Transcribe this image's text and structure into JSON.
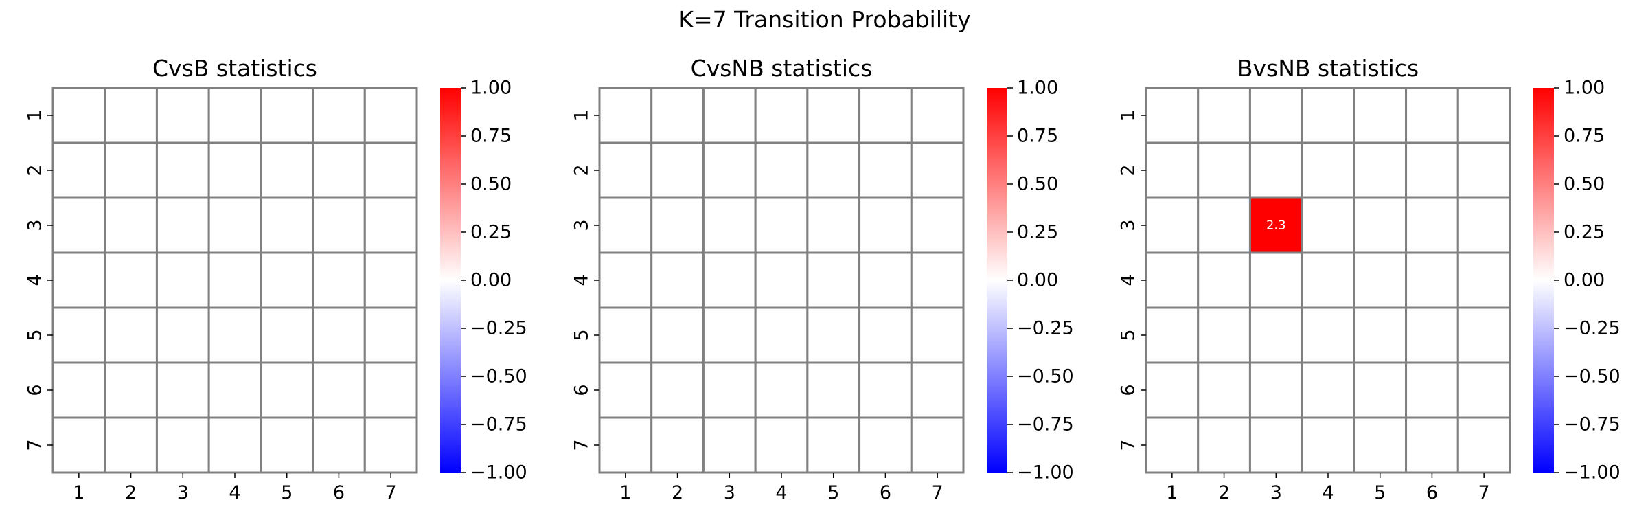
{
  "suptitle": "K=7 Transition Probability",
  "chart_data": [
    {
      "type": "heatmap",
      "title": "CvsB statistics",
      "x_ticks": [
        "1",
        "2",
        "3",
        "4",
        "5",
        "6",
        "7"
      ],
      "y_ticks": [
        "1",
        "2",
        "3",
        "4",
        "5",
        "6",
        "7"
      ],
      "values": [
        [
          0,
          0,
          0,
          0,
          0,
          0,
          0
        ],
        [
          0,
          0,
          0,
          0,
          0,
          0,
          0
        ],
        [
          0,
          0,
          0,
          0,
          0,
          0,
          0
        ],
        [
          0,
          0,
          0,
          0,
          0,
          0,
          0
        ],
        [
          0,
          0,
          0,
          0,
          0,
          0,
          0
        ],
        [
          0,
          0,
          0,
          0,
          0,
          0,
          0
        ],
        [
          0,
          0,
          0,
          0,
          0,
          0,
          0
        ]
      ],
      "annotations": [],
      "colorbar": {
        "min": -1.0,
        "max": 1.0,
        "ticks": [
          "1.00",
          "0.75",
          "0.50",
          "0.25",
          "0.00",
          "−0.25",
          "−0.50",
          "−0.75",
          "−1.00"
        ],
        "colors": [
          "#0000ff",
          "#ffffff",
          "#ff0000"
        ]
      }
    },
    {
      "type": "heatmap",
      "title": "CvsNB statistics",
      "x_ticks": [
        "1",
        "2",
        "3",
        "4",
        "5",
        "6",
        "7"
      ],
      "y_ticks": [
        "1",
        "2",
        "3",
        "4",
        "5",
        "6",
        "7"
      ],
      "values": [
        [
          0,
          0,
          0,
          0,
          0,
          0,
          0
        ],
        [
          0,
          0,
          0,
          0,
          0,
          0,
          0
        ],
        [
          0,
          0,
          0,
          0,
          0,
          0,
          0
        ],
        [
          0,
          0,
          0,
          0,
          0,
          0,
          0
        ],
        [
          0,
          0,
          0,
          0,
          0,
          0,
          0
        ],
        [
          0,
          0,
          0,
          0,
          0,
          0,
          0
        ],
        [
          0,
          0,
          0,
          0,
          0,
          0,
          0
        ]
      ],
      "annotations": [],
      "colorbar": {
        "min": -1.0,
        "max": 1.0,
        "ticks": [
          "1.00",
          "0.75",
          "0.50",
          "0.25",
          "0.00",
          "−0.25",
          "−0.50",
          "−0.75",
          "−1.00"
        ],
        "colors": [
          "#0000ff",
          "#ffffff",
          "#ff0000"
        ]
      }
    },
    {
      "type": "heatmap",
      "title": "BvsNB statistics",
      "x_ticks": [
        "1",
        "2",
        "3",
        "4",
        "5",
        "6",
        "7"
      ],
      "y_ticks": [
        "1",
        "2",
        "3",
        "4",
        "5",
        "6",
        "7"
      ],
      "values": [
        [
          0,
          0,
          0,
          0,
          0,
          0,
          0
        ],
        [
          0,
          0,
          0,
          0,
          0,
          0,
          0
        ],
        [
          0,
          0,
          2.3,
          0,
          0,
          0,
          0
        ],
        [
          0,
          0,
          0,
          0,
          0,
          0,
          0
        ],
        [
          0,
          0,
          0,
          0,
          0,
          0,
          0
        ],
        [
          0,
          0,
          0,
          0,
          0,
          0,
          0
        ],
        [
          0,
          0,
          0,
          0,
          0,
          0,
          0
        ]
      ],
      "annotations": [
        {
          "row": 3,
          "col": 3,
          "text": "2.3"
        }
      ],
      "colorbar": {
        "min": -1.0,
        "max": 1.0,
        "ticks": [
          "1.00",
          "0.75",
          "0.50",
          "0.25",
          "0.00",
          "−0.25",
          "−0.50",
          "−0.75",
          "−1.00"
        ],
        "colors": [
          "#0000ff",
          "#ffffff",
          "#ff0000"
        ]
      }
    }
  ]
}
